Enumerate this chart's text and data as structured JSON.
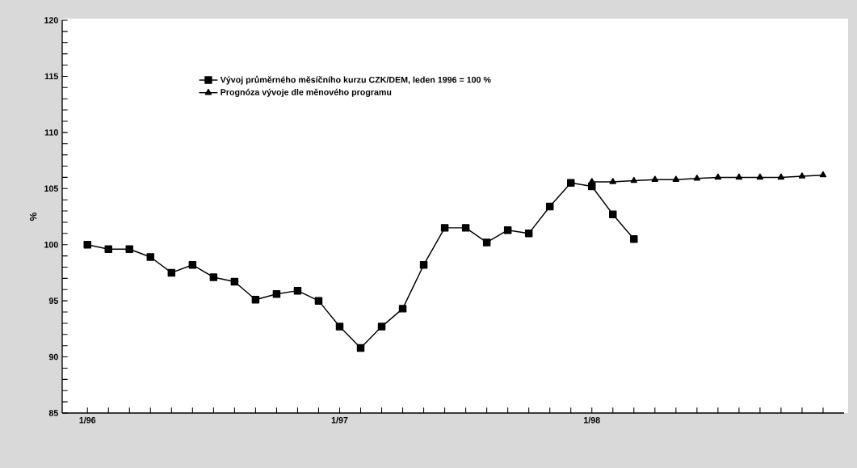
{
  "chart_data": {
    "type": "line",
    "ylabel": "%",
    "categories": [
      "1/96",
      null,
      null,
      null,
      null,
      null,
      null,
      null,
      null,
      null,
      null,
      null,
      "1/97",
      null,
      null,
      null,
      null,
      null,
      null,
      null,
      null,
      null,
      null,
      null,
      "1/98",
      null,
      null,
      null,
      null,
      null,
      null,
      null,
      null,
      null,
      null,
      null
    ],
    "series": [
      {
        "name": "Vývoj průměrného měsíčního kurzu CZK/DEM, leden 1996 = 100 %",
        "color": "#000000",
        "marker": "square",
        "values": [
          100,
          99.6,
          99.6,
          98.9,
          97.5,
          98.2,
          97.1,
          96.7,
          95.1,
          95.6,
          95.9,
          95.0,
          92.7,
          90.8,
          92.7,
          94.3,
          98.2,
          101.5,
          101.5,
          100.2,
          101.3,
          101.0,
          103.4,
          105.5,
          105.2,
          102.7,
          100.5,
          null,
          null,
          null,
          null,
          null,
          null,
          null,
          null,
          null
        ]
      },
      {
        "name": "Prognóza vývoje dle měnového programu",
        "color": "#000000",
        "marker": "triangle",
        "values": [
          null,
          null,
          null,
          null,
          null,
          null,
          null,
          null,
          null,
          null,
          null,
          null,
          null,
          null,
          null,
          null,
          null,
          null,
          null,
          null,
          null,
          null,
          null,
          null,
          105.6,
          105.6,
          105.7,
          105.8,
          105.8,
          105.9,
          106.0,
          106.0,
          106.0,
          106.0,
          106.1,
          106.2
        ]
      }
    ],
    "ylim": [
      85,
      120
    ],
    "yticks": [
      85,
      {
        "value": 86,
        "label": null
      },
      {
        "value": 87,
        "label": null
      },
      {
        "value": 88,
        "label": null
      },
      {
        "value": 89,
        "label": null
      },
      90,
      {
        "value": 91,
        "label": null
      },
      {
        "value": 92,
        "label": null
      },
      {
        "value": 93,
        "label": null
      },
      {
        "value": 94,
        "label": null
      },
      95,
      {
        "value": 96,
        "label": null
      },
      {
        "value": 97,
        "label": null
      },
      {
        "value": 98,
        "label": null
      },
      {
        "value": 99,
        "label": null
      },
      100,
      {
        "value": 101,
        "label": null
      },
      {
        "value": 102,
        "label": null
      },
      {
        "value": 103,
        "label": null
      },
      {
        "value": 104,
        "label": null
      },
      105,
      {
        "value": 106,
        "label": null
      },
      {
        "value": 107,
        "label": null
      },
      {
        "value": 108,
        "label": null
      },
      {
        "value": 109,
        "label": null
      },
      110,
      {
        "value": 111,
        "label": null
      },
      {
        "value": 112,
        "label": null
      },
      {
        "value": 113,
        "label": null
      },
      {
        "value": 114,
        "label": null
      },
      115,
      {
        "value": 116,
        "label": null
      },
      {
        "value": 117,
        "label": null
      },
      {
        "value": 118,
        "label": null
      },
      {
        "value": 119,
        "label": null
      },
      120
    ],
    "grid": false,
    "legend": "top left",
    "line_style": "solid"
  }
}
